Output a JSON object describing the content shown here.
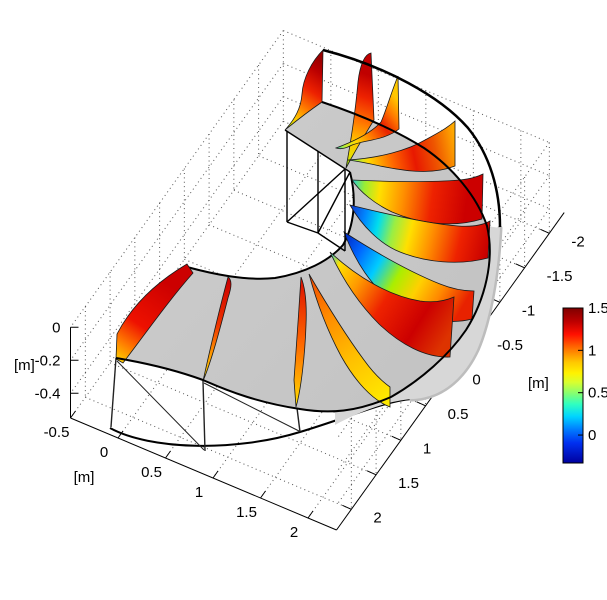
{
  "figure": {
    "background": "#ffffff",
    "surface_color": "#c6c6c6",
    "wall_face_color": "#d7d7d7"
  },
  "chart_data": {
    "type": "heatmap",
    "subtype": "3d-cross-section-velocity-slices",
    "title": "",
    "description": "3D view of a ~193-degree curved open-channel bend. A gray water-surface ribbon spans the half-annulus; vertical cross-section curtains along the bend show streamwise velocity contours in a jet colormap (red high near outer bank, blue low/reversed near inner bank in mid-bend sections). Wireframe straight inlet reach at top center; dotted grid walls and floor.",
    "axes": {
      "x": {
        "label": "[m]",
        "ticks": [
          -0.5,
          0,
          0.5,
          1,
          1.5,
          2
        ],
        "range": [
          -0.5,
          2.3
        ]
      },
      "y": {
        "label": "[m]",
        "ticks": [
          2,
          1.5,
          1,
          0.5,
          0,
          -0.5,
          -1,
          -1.5,
          -2
        ],
        "range": [
          -2.3,
          2.3
        ]
      },
      "z": {
        "label": "[m]",
        "ticks": [
          0,
          -0.2,
          -0.4
        ],
        "range": [
          -0.55,
          0
        ]
      }
    },
    "colorbar": {
      "ticks": [
        1.5,
        1,
        0.5,
        0
      ],
      "range": [
        -0.33,
        1.5
      ],
      "colormap": "jet"
    },
    "n_slices": 12,
    "grid": "dotted",
    "legend_position": "right-colorbar"
  },
  "colorbar": {
    "tick_labels": [
      "1.5",
      "1",
      "0.5",
      "0"
    ]
  }
}
